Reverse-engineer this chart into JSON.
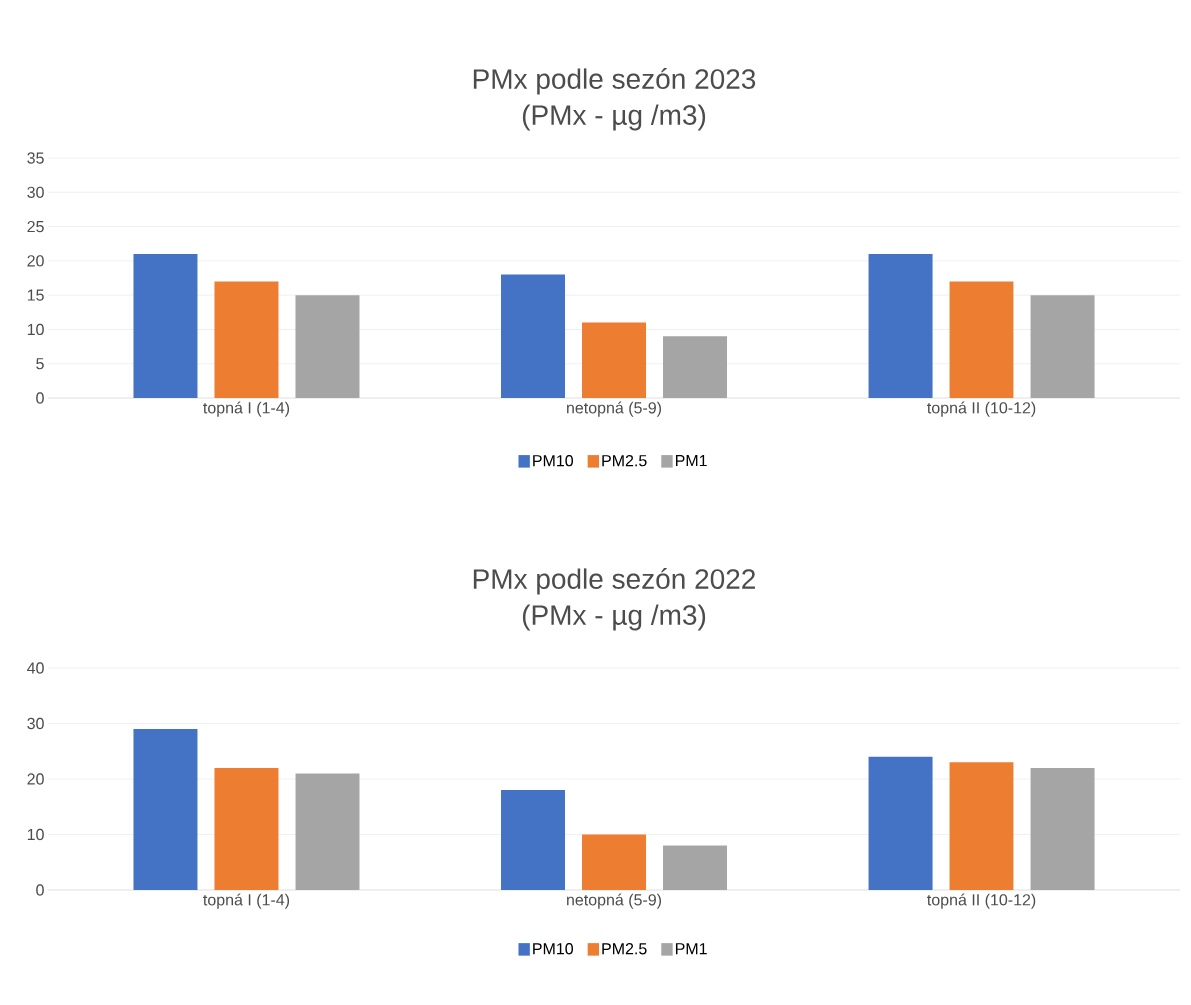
{
  "chart_data": [
    {
      "type": "bar",
      "title": "PMx podle sezón 2023",
      "subtitle": "(PMx - µg /m3)",
      "categories": [
        "topná I (1-4)",
        "netopná (5-9)",
        "topná II (10-12)"
      ],
      "series": [
        {
          "name": "PM10",
          "color": "#4472c4",
          "values": [
            21,
            18,
            21
          ]
        },
        {
          "name": "PM2.5",
          "color": "#ed7d31",
          "values": [
            17,
            11,
            17
          ]
        },
        {
          "name": "PM1",
          "color": "#a5a5a5",
          "values": [
            15,
            9,
            15
          ]
        }
      ],
      "ylim": [
        0,
        35
      ],
      "yticks": [
        0,
        5,
        10,
        15,
        20,
        25,
        30,
        35
      ],
      "grid": "y",
      "legend": "bottom"
    },
    {
      "type": "bar",
      "title": "PMx podle sezón 2022",
      "subtitle": "(PMx - µg /m3)",
      "categories": [
        "topná I (1-4)",
        "netopná (5-9)",
        "topná II (10-12)"
      ],
      "series": [
        {
          "name": "PM10",
          "color": "#4472c4",
          "values": [
            29,
            18,
            24
          ]
        },
        {
          "name": "PM2.5",
          "color": "#ed7d31",
          "values": [
            22,
            10,
            23
          ]
        },
        {
          "name": "PM1",
          "color": "#a5a5a5",
          "values": [
            21,
            8,
            22
          ]
        }
      ],
      "ylim": [
        0,
        40
      ],
      "yticks": [
        0,
        10,
        20,
        30,
        40
      ],
      "grid": "y",
      "legend": "bottom"
    }
  ]
}
